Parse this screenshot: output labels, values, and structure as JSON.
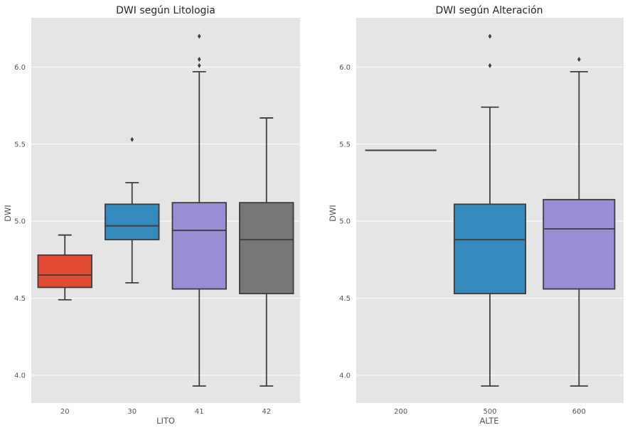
{
  "chart_data": [
    {
      "type": "box",
      "title": "DWI según Litologia",
      "xlabel": "LITO",
      "ylabel": "DWI",
      "categories": [
        "20",
        "30",
        "41",
        "42"
      ],
      "colors": [
        "#e24a33",
        "#348abd",
        "#988ed5",
        "#777777"
      ],
      "ylim": [
        3.82,
        6.32
      ],
      "yticks": [
        4.0,
        4.5,
        5.0,
        5.5,
        6.0
      ],
      "ytick_labels": [
        "4.0",
        "4.5",
        "5.0",
        "5.5",
        "6.0"
      ],
      "grid": true,
      "boxes": [
        {
          "whislo": 4.49,
          "q1": 4.57,
          "med": 4.65,
          "q3": 4.78,
          "whishi": 4.91,
          "fliers": []
        },
        {
          "whislo": 4.6,
          "q1": 4.88,
          "med": 4.97,
          "q3": 5.11,
          "whishi": 5.25,
          "fliers": [
            5.53
          ]
        },
        {
          "whislo": 3.93,
          "q1": 4.56,
          "med": 4.94,
          "q3": 5.12,
          "whishi": 5.97,
          "fliers": [
            6.01,
            6.05,
            6.2
          ]
        },
        {
          "whislo": 3.93,
          "q1": 4.53,
          "med": 4.88,
          "q3": 5.12,
          "whishi": 5.67,
          "fliers": []
        }
      ]
    },
    {
      "type": "box",
      "title": "DWI según Alteración",
      "xlabel": "ALTE",
      "ylabel": "DWI",
      "categories": [
        "200",
        "500",
        "600"
      ],
      "colors": [
        "#e24a33",
        "#348abd",
        "#988ed5"
      ],
      "ylim": [
        3.82,
        6.32
      ],
      "yticks": [
        4.0,
        4.5,
        5.0,
        5.5,
        6.0
      ],
      "ytick_labels": [
        "4.0",
        "4.5",
        "5.0",
        "5.5",
        "6.0"
      ],
      "grid": true,
      "boxes": [
        {
          "whislo": 5.46,
          "q1": 5.46,
          "med": 5.46,
          "q3": 5.46,
          "whishi": 5.46,
          "fliers": []
        },
        {
          "whislo": 3.93,
          "q1": 4.53,
          "med": 4.88,
          "q3": 5.11,
          "whishi": 5.74,
          "fliers": [
            6.01,
            6.2
          ]
        },
        {
          "whislo": 3.93,
          "q1": 4.56,
          "med": 4.95,
          "q3": 5.14,
          "whishi": 5.97,
          "fliers": [
            6.05
          ]
        }
      ]
    }
  ]
}
